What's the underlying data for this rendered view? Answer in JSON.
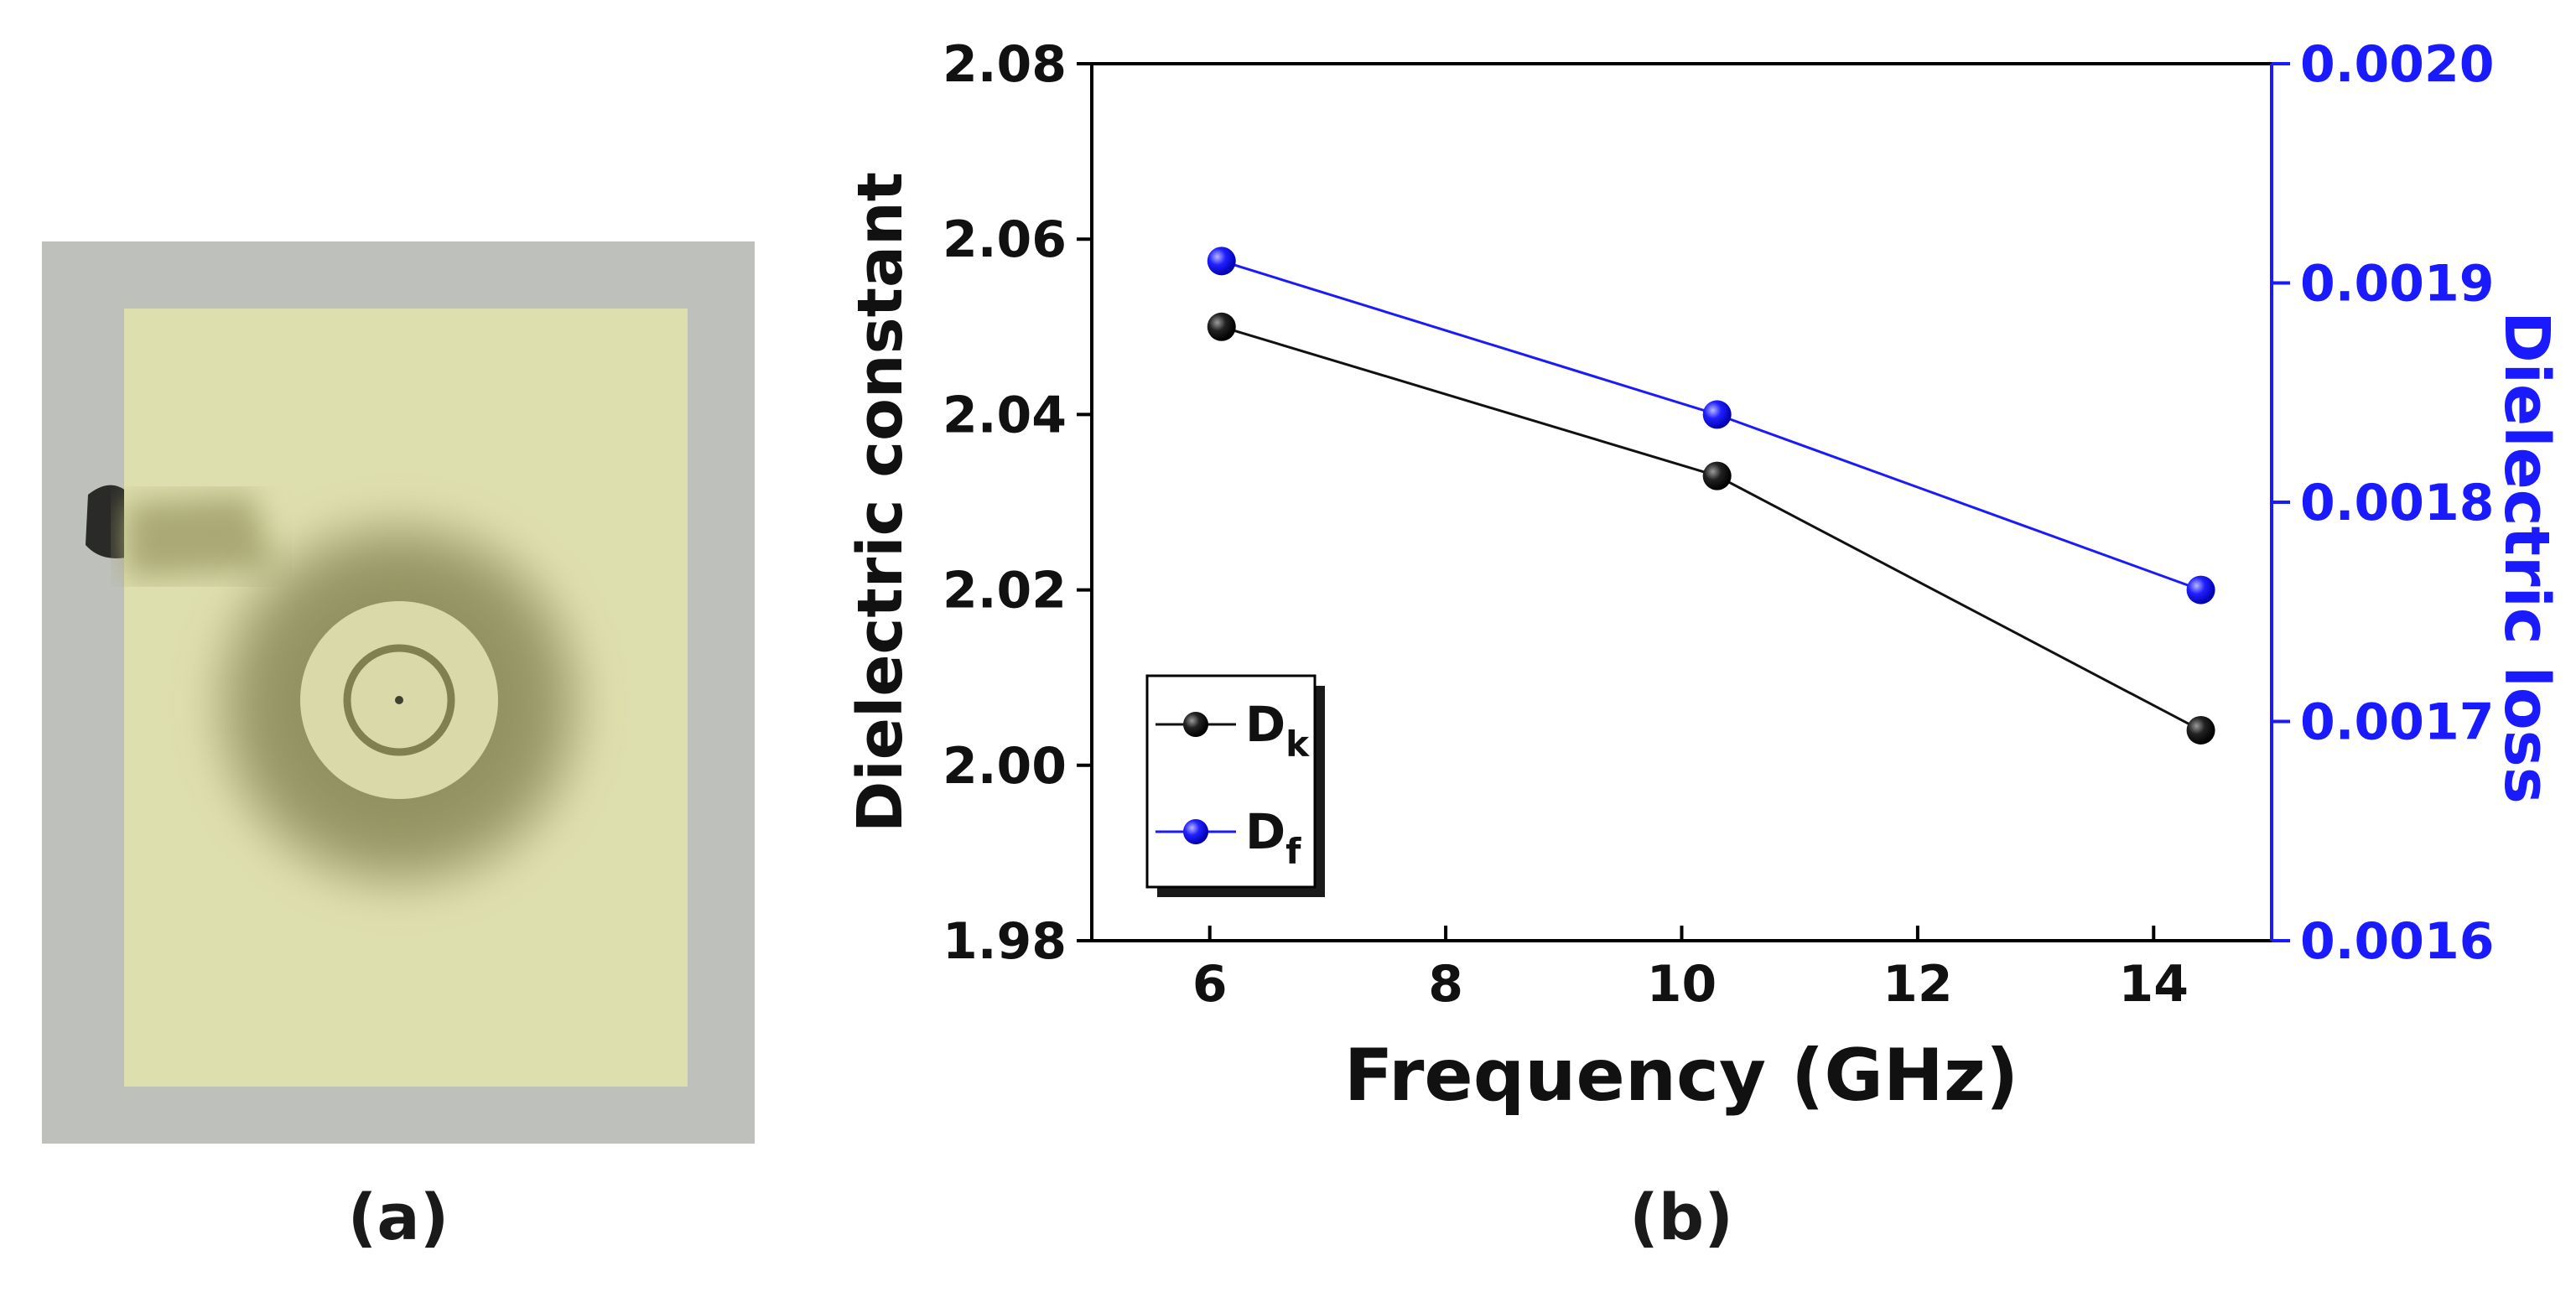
{
  "panels": {
    "a_label": "(a)",
    "b_label": "(b)"
  },
  "colors": {
    "dk": "#111111",
    "df": "#1a1aff",
    "axis_left": "#000000",
    "axis_right": "#1a1aff"
  },
  "chart_data": {
    "type": "line",
    "title": "",
    "xlabel": "Frequency (GHz)",
    "ylabel": "Dielectric constant",
    "y2label": "Dielectric loss",
    "xlim": [
      5,
      15
    ],
    "ylim": [
      1.98,
      2.08
    ],
    "y2lim": [
      0.0016,
      0.002
    ],
    "x_ticks": [
      "6",
      "8",
      "10",
      "12",
      "14"
    ],
    "x_tick_values": [
      6,
      8,
      10,
      12,
      14
    ],
    "y_ticks": [
      "1.98",
      "2.00",
      "2.02",
      "2.04",
      "2.06",
      "2.08"
    ],
    "y_tick_values": [
      1.98,
      2.0,
      2.02,
      2.04,
      2.06,
      2.08
    ],
    "y2_ticks": [
      "0.0016",
      "0.0017",
      "0.0018",
      "0.0019",
      "0.0020"
    ],
    "y2_tick_values": [
      0.0016,
      0.0017,
      0.0018,
      0.0019,
      0.002
    ],
    "legend_position": "lower-left",
    "series": [
      {
        "key": "dk",
        "name": "D",
        "sub": "k",
        "axis": "left",
        "x": [
          6.1,
          10.3,
          14.4
        ],
        "values": [
          2.05,
          2.033,
          2.004
        ]
      },
      {
        "key": "df",
        "name": "D",
        "sub": "f",
        "axis": "right",
        "x": [
          6.1,
          10.3,
          14.4
        ],
        "values": [
          0.00191,
          0.00184,
          0.00176
        ]
      }
    ]
  }
}
